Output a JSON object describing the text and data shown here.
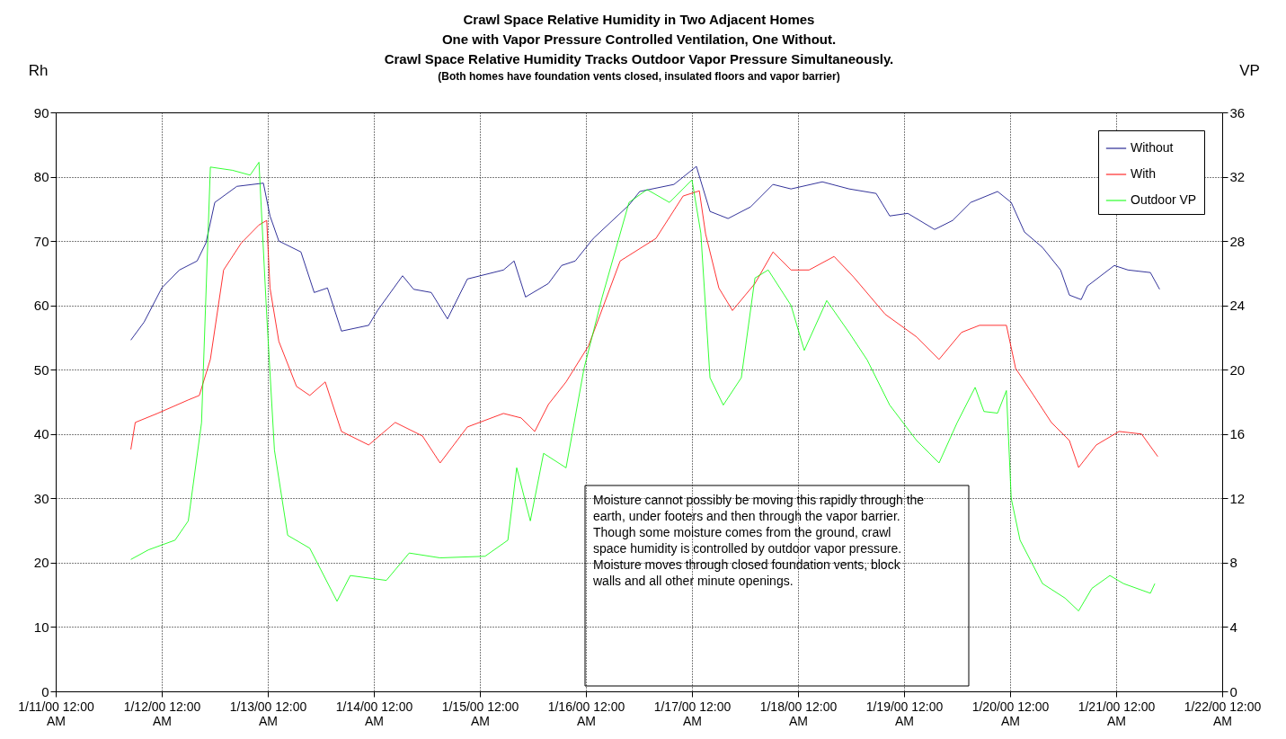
{
  "chart_data": {
    "type": "line",
    "title": "Crawl Space Relative Humidity in Two Adjacent Homes\nOne with  Vapor Pressure Controlled Ventilation, One Without.\nCrawl Space Relative Humidity Tracks Outdoor Vapor Pressure Simultaneously.",
    "subtitle": "(Both homes have foundation vents closed, insulated floors and vapor barrier)",
    "ylabel": "Rh",
    "y2label": "VP",
    "annotations": [
      "Moisture cannot possibly be moving this rapidly through the earth, under footers and then through the vapor barrier.",
      "Though some moisture comes from the ground, crawl space humidity is controlled by outdoor vapor pressure.",
      "Moisture moves through closed foundation vents, block walls and all other minute openings."
    ],
    "xlim": [
      "2000-01-11",
      "2000-01-22"
    ],
    "xticks": [
      {
        "value": "2000-01-11",
        "label": "1/11/00 12:00 AM"
      },
      {
        "value": "2000-01-12",
        "label": "1/12/00 12:00 AM"
      },
      {
        "value": "2000-01-13",
        "label": "1/13/00 12:00 AM"
      },
      {
        "value": "2000-01-14",
        "label": "1/14/00 12:00 AM"
      },
      {
        "value": "2000-01-15",
        "label": "1/15/00 12:00 AM"
      },
      {
        "value": "2000-01-16",
        "label": "1/16/00 12:00 AM"
      },
      {
        "value": "2000-01-17",
        "label": "1/17/00 12:00 AM"
      },
      {
        "value": "2000-01-18",
        "label": "1/18/00 12:00 AM"
      },
      {
        "value": "2000-01-19",
        "label": "1/19/00 12:00 AM"
      },
      {
        "value": "2000-01-20",
        "label": "1/20/00 12:00 AM"
      },
      {
        "value": "2000-01-21",
        "label": "1/21/00 12:00 AM"
      },
      {
        "value": "2000-01-22",
        "label": "1/22/00 12:00 AM"
      }
    ],
    "ylim": [
      0,
      90
    ],
    "yticks": [
      0,
      10,
      20,
      30,
      40,
      50,
      60,
      70,
      80,
      90
    ],
    "y2lim": [
      0,
      36
    ],
    "y2ticks": [
      0,
      4,
      8,
      12,
      16,
      20,
      24,
      28,
      32,
      36
    ],
    "grid": true,
    "legend": "top right",
    "line_style": "solid",
    "marker": "none",
    "series": [
      {
        "name": "Without",
        "color": "#000080",
        "x": [
          "2000-01-11T17:00",
          "2000-01-11T20:00",
          "2000-01-12T00:00",
          "2000-01-12T04:00",
          "2000-01-12T08:00",
          "2000-01-12T10:00",
          "2000-01-12T12:00",
          "2000-01-12T17:00",
          "2000-01-12T23:00",
          "2000-01-13T00:30",
          "2000-01-13T02:30",
          "2000-01-13T07:30",
          "2000-01-13T10:30",
          "2000-01-13T13:30",
          "2000-01-13T16:40",
          "2000-01-13T22:50",
          "2000-01-14T00:50",
          "2000-01-14T06:30",
          "2000-01-14T09:00",
          "2000-01-14T13:00",
          "2000-01-14T16:40",
          "2000-01-14T21:10",
          "2000-01-15T05:20",
          "2000-01-15T07:45",
          "2000-01-15T10:20",
          "2000-01-15T15:30",
          "2000-01-15T18:30",
          "2000-01-15T21:35",
          "2000-01-16T01:40",
          "2000-01-16T09:45",
          "2000-01-16T12:10",
          "2000-01-16T19:55",
          "2000-01-17T01:00",
          "2000-01-17T04:05",
          "2000-01-17T08:10",
          "2000-01-17T13:15",
          "2000-01-17T18:20",
          "2000-01-17T22:25",
          "2000-01-18T05:30",
          "2000-01-18T11:35",
          "2000-01-18T17:40",
          "2000-01-18T20:45",
          "2000-01-19T00:50",
          "2000-01-19T06:55",
          "2000-01-19T11:00",
          "2000-01-19T15:05",
          "2000-01-19T21:10",
          "2000-01-20T00:15",
          "2000-01-20T03:15",
          "2000-01-20T07:20",
          "2000-01-20T11:25",
          "2000-01-20T13:25",
          "2000-01-20T16:05",
          "2000-01-20T17:30",
          "2000-01-20T23:35",
          "2000-01-21T02:40",
          "2000-01-21T07:45",
          "2000-01-21T09:50"
        ],
        "values": [
          54.6,
          57.4,
          62.7,
          65.5,
          66.9,
          69.7,
          76,
          78.5,
          79,
          73.9,
          70,
          68.3,
          62,
          62.7,
          56,
          56.9,
          59.2,
          64.6,
          62.5,
          62,
          57.9,
          64.1,
          65.5,
          66.9,
          61.3,
          63.4,
          66.2,
          66.9,
          70.4,
          75.6,
          77.7,
          78.8,
          81.6,
          74.6,
          73.5,
          75.3,
          78.8,
          78.1,
          79.2,
          78.1,
          77.4,
          73.9,
          74.3,
          71.8,
          73.2,
          76,
          77.7,
          76,
          71.4,
          69,
          65.5,
          61.6,
          60.9,
          63,
          66.2,
          65.5,
          65.1,
          62.5
        ]
      },
      {
        "name": "With",
        "color": "#ff0000",
        "x": [
          "2000-01-11T17:00",
          "2000-01-11T18:00",
          "2000-01-11T23:00",
          "2000-01-12T06:00",
          "2000-01-12T08:30",
          "2000-01-12T11:00",
          "2000-01-12T14:00",
          "2000-01-12T18:00",
          "2000-01-12T22:00",
          "2000-01-12T23:45",
          "2000-01-13T00:30",
          "2000-01-13T02:30",
          "2000-01-13T06:30",
          "2000-01-13T09:30",
          "2000-01-13T13:00",
          "2000-01-13T16:40",
          "2000-01-13T22:50",
          "2000-01-14T04:50",
          "2000-01-14T11:00",
          "2000-01-14T15:00",
          "2000-01-14T21:10",
          "2000-01-15T05:20",
          "2000-01-15T09:20",
          "2000-01-15T12:25",
          "2000-01-15T15:30",
          "2000-01-15T19:30",
          "2000-01-16T00:35",
          "2000-01-16T07:45",
          "2000-01-16T15:50",
          "2000-01-16T22:00",
          "2000-01-17T01:40",
          "2000-01-17T03:05",
          "2000-01-17T06:05",
          "2000-01-17T09:10",
          "2000-01-17T14:15",
          "2000-01-17T18:20",
          "2000-01-17T22:25",
          "2000-01-18T02:30",
          "2000-01-18T08:10",
          "2000-01-18T12:35",
          "2000-01-18T19:45",
          "2000-01-19T02:50",
          "2000-01-19T07:55",
          "2000-01-19T13:00",
          "2000-01-19T17:05",
          "2000-01-19T23:10",
          "2000-01-20T01:15",
          "2000-01-20T05:20",
          "2000-01-20T09:20",
          "2000-01-20T13:25",
          "2000-01-20T15:30",
          "2000-01-20T19:30",
          "2000-01-21T00:40",
          "2000-01-21T05:45",
          "2000-01-21T09:25"
        ],
        "values": [
          37.6,
          41.8,
          43.2,
          45.3,
          46,
          51.6,
          65.5,
          69.7,
          72.5,
          73.2,
          62.7,
          54.4,
          47.4,
          46,
          48.1,
          40.4,
          38.3,
          41.8,
          39.7,
          35.5,
          41.1,
          43.2,
          42.5,
          40.4,
          44.6,
          48.1,
          53.7,
          66.9,
          70.4,
          77,
          77.8,
          71.1,
          62.7,
          59.2,
          63.4,
          68.3,
          65.5,
          65.5,
          67.6,
          64.4,
          58.6,
          55.1,
          51.6,
          55.8,
          56.9,
          56.9,
          50.2,
          46,
          41.8,
          39,
          34.8,
          38.3,
          40.4,
          40,
          36.5
        ]
      },
      {
        "name": "Outdoor VP",
        "color": "#00ff00",
        "axis": "y2",
        "x": [
          "2000-01-11T17:00",
          "2000-01-11T21:00",
          "2000-01-12T03:00",
          "2000-01-12T06:00",
          "2000-01-12T09:00",
          "2000-01-12T11:00",
          "2000-01-12T16:00",
          "2000-01-12T20:00",
          "2000-01-12T22:00",
          "2000-01-12T23:45",
          "2000-01-13T01:30",
          "2000-01-13T04:30",
          "2000-01-13T09:30",
          "2000-01-13T15:40",
          "2000-01-13T18:40",
          "2000-01-14T02:50",
          "2000-01-14T08:00",
          "2000-01-14T15:00",
          "2000-01-15T01:10",
          "2000-01-15T06:20",
          "2000-01-15T08:20",
          "2000-01-15T11:25",
          "2000-01-15T14:25",
          "2000-01-15T19:30",
          "2000-01-15T23:35",
          "2000-01-16T03:40",
          "2000-01-16T09:45",
          "2000-01-16T13:50",
          "2000-01-16T18:55",
          "2000-01-17T00:00",
          "2000-01-17T02:00",
          "2000-01-17T04:05",
          "2000-01-17T07:05",
          "2000-01-17T11:10",
          "2000-01-17T14:15",
          "2000-01-17T17:15",
          "2000-01-17T22:25",
          "2000-01-18T01:25",
          "2000-01-18T06:30",
          "2000-01-18T11:35",
          "2000-01-18T15:40",
          "2000-01-18T20:45",
          "2000-01-19T02:50",
          "2000-01-19T07:55",
          "2000-01-19T12:00",
          "2000-01-19T16:05",
          "2000-01-19T18:05",
          "2000-01-19T21:10",
          "2000-01-19T23:10",
          "2000-01-20T00:15",
          "2000-01-20T02:15",
          "2000-01-20T07:20",
          "2000-01-20T12:25",
          "2000-01-20T15:30",
          "2000-01-20T18:30",
          "2000-01-20T22:35",
          "2000-01-21T01:40",
          "2000-01-21T07:45",
          "2000-01-21T08:45"
        ],
        "values": [
          8.2,
          8.8,
          9.4,
          10.6,
          16.7,
          32.6,
          32.4,
          32.1,
          32.9,
          23.4,
          15,
          9.7,
          8.9,
          5.6,
          7.2,
          6.9,
          8.6,
          8.3,
          8.4,
          9.4,
          13.9,
          10.6,
          14.8,
          13.9,
          20.1,
          24.5,
          30.4,
          31.2,
          30.4,
          31.8,
          28.5,
          19.5,
          17.8,
          19.5,
          25.7,
          26.2,
          24,
          21.2,
          24.3,
          22.3,
          20.6,
          17.8,
          15.6,
          14.2,
          16.7,
          18.9,
          17.4,
          17.3,
          18.7,
          12,
          9.4,
          6.7,
          5.8,
          5,
          6.4,
          7.2,
          6.7,
          6.1,
          6.7
        ]
      }
    ]
  }
}
